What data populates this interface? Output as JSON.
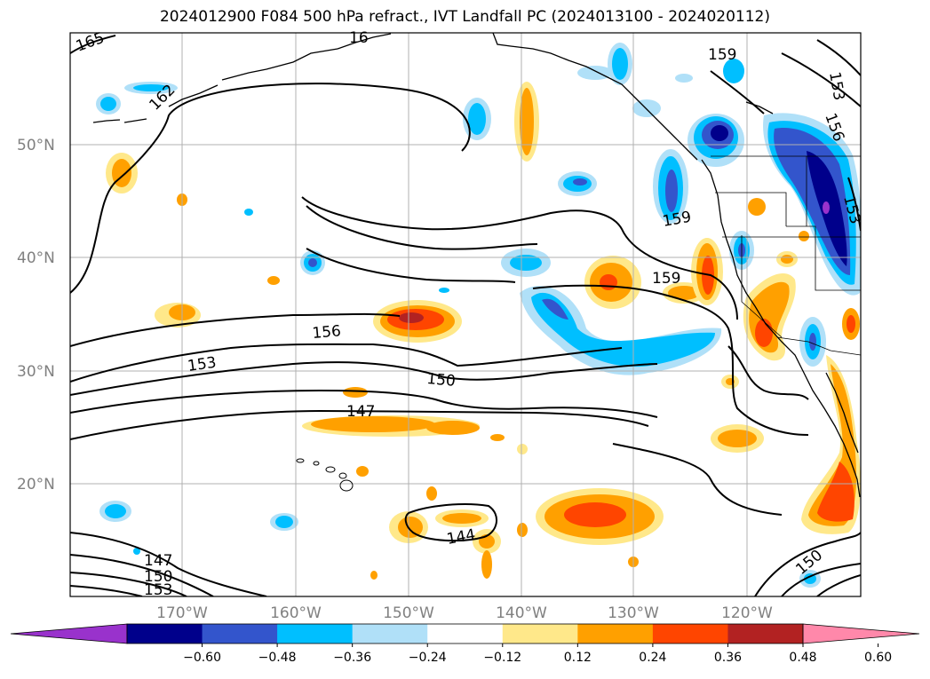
{
  "title": "2024012900 F084 500 hPa refract., IVT Landfall PC (2024013100 - 2024020112)",
  "lat_labels": [
    "50°N",
    "40°N",
    "30°N",
    "20°N"
  ],
  "lon_labels": [
    "170°W",
    "160°W",
    "150°W",
    "140°W",
    "130°W",
    "120°W"
  ],
  "contour_labels": [
    "165",
    "16",
    "162",
    "159",
    "153",
    "156",
    "153",
    "159",
    "159",
    "156",
    "153",
    "150",
    "147",
    "144",
    "147",
    "150",
    "153",
    "150"
  ],
  "colorbar": {
    "ticks": [
      "−0.60",
      "−0.48",
      "−0.36",
      "−0.24",
      "−0.12",
      "0.12",
      "0.24",
      "0.36",
      "0.48",
      "0.60"
    ],
    "colors": [
      "#9932cc",
      "#00008b",
      "#3355cc",
      "#00bfff",
      "#b0e0f8",
      "#ffffff",
      "#ffe88a",
      "#ffa000",
      "#ff4500",
      "#b22222",
      "#ff88aa"
    ]
  }
}
